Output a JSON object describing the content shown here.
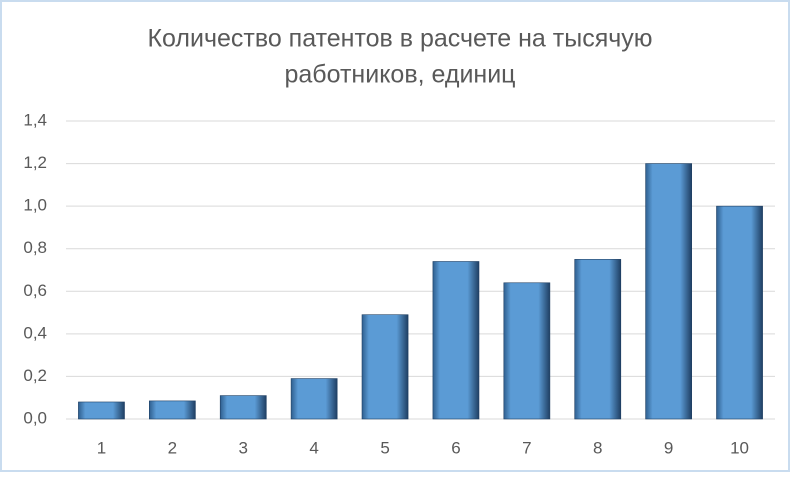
{
  "chart_data": {
    "type": "bar",
    "title": [
      "Количество патентов в расчете на тысячую",
      "работников, единиц"
    ],
    "categories": [
      "1",
      "2",
      "3",
      "4",
      "5",
      "6",
      "7",
      "8",
      "9",
      "10"
    ],
    "values": [
      0.08,
      0.085,
      0.11,
      0.19,
      0.49,
      0.74,
      0.64,
      0.75,
      1.2,
      1.0
    ],
    "color": "#5b9bd5",
    "ylim": [
      0,
      1.4
    ],
    "yticks": [
      {
        "value": 0,
        "label": "0,0"
      },
      {
        "value": 0.2,
        "label": "0,2"
      },
      {
        "value": 0.4,
        "label": "0,4"
      },
      {
        "value": 0.6,
        "label": "0,6"
      },
      {
        "value": 0.8,
        "label": "0,8"
      },
      {
        "value": 1.0,
        "label": "1,0"
      },
      {
        "value": 1.2,
        "label": "1,2"
      },
      {
        "value": 1.4,
        "label": "1,4"
      }
    ],
    "grid": true
  }
}
